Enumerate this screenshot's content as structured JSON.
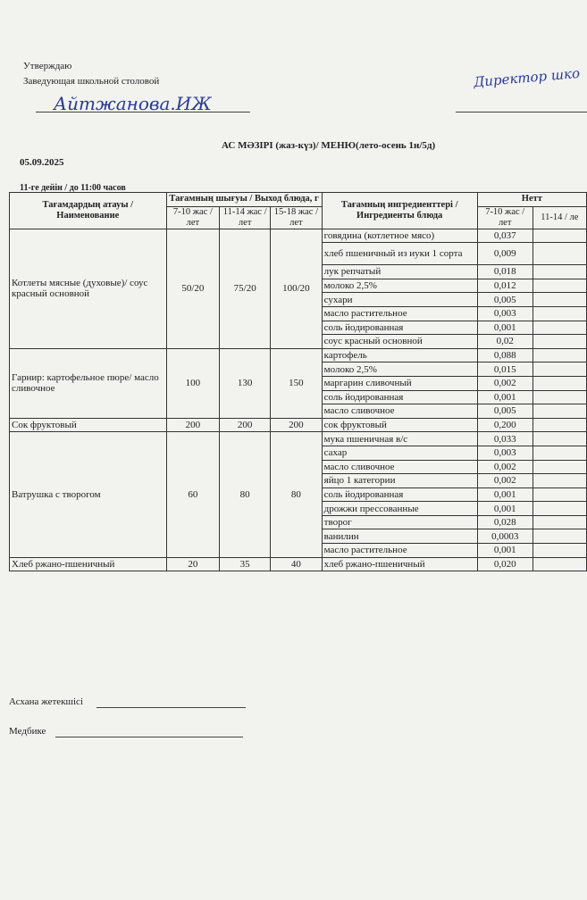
{
  "header": {
    "approve": "Утверждаю",
    "position": "Заведующая школьной столовой",
    "signature": "Айтжанова.ИЖ",
    "right_note": "Директор шко"
  },
  "title": "АС  МӘЗІРІ (жаз-күз)/ МЕНЮ(лето-осень 1н/5д)",
  "date": "05.09.2025",
  "time": "11-ге дейін / до 11:00 часов",
  "table": {
    "headers": {
      "name": "Тағамдардың атауы / Наименование",
      "output": "Тағамның шығуы / Выход блюда, г",
      "ages": [
        "7-10 жас / лет",
        "11-14 жас / лет",
        "15-18 жас / лет"
      ],
      "ingredients": "Тағамның ингредиенттері / Ингредиенты блюда",
      "netto": "Нетт",
      "netto_ages": [
        "7-10 жас / лет",
        "11-14 / ле"
      ]
    },
    "dishes": [
      {
        "name": "Котлеты мясные (духовые)/ соус красный основной",
        "outputs": [
          "50/20",
          "75/20",
          "100/20"
        ],
        "ingredients": [
          [
            "говядина (котлетное мясо)",
            "0,037"
          ],
          [
            "хлеб пшеничный из иуки 1 сорта",
            "0,009"
          ],
          [
            "лук репчатый",
            "0,018"
          ],
          [
            "молоко 2,5%",
            "0,012"
          ],
          [
            "сухари",
            "0,005"
          ],
          [
            "масло растительное",
            "0,003"
          ],
          [
            "соль йодированная",
            "0,001"
          ],
          [
            "соус красный основной",
            "0,02"
          ]
        ]
      },
      {
        "name": "Гарнир:  картофельное пюре/ масло сливочное",
        "outputs": [
          "100",
          "130",
          "150"
        ],
        "ingredients": [
          [
            "картофель",
            "0,088"
          ],
          [
            "молоко 2,5%",
            "0,015"
          ],
          [
            "маргарин сливочный",
            "0,002"
          ],
          [
            "соль йодированная",
            "0,001"
          ],
          [
            "масло сливочное",
            "0,005"
          ]
        ]
      },
      {
        "name": "Сок фруктовый",
        "outputs": [
          "200",
          "200",
          "200"
        ],
        "ingredients": [
          [
            "сок фруктовый",
            "0,200"
          ]
        ]
      },
      {
        "name": "Ватрушка с творогом",
        "outputs": [
          "60",
          "80",
          "80"
        ],
        "ingredients": [
          [
            "мука пшеничная в/с",
            "0,033"
          ],
          [
            "сахар",
            "0,003"
          ],
          [
            "масло сливочное",
            "0,002"
          ],
          [
            "яйцо 1 категории",
            "0,002"
          ],
          [
            "соль йодированная",
            "0,001"
          ],
          [
            "дрожжи прессованные",
            "0,001"
          ],
          [
            "творог",
            "0,028"
          ],
          [
            "ванилин",
            "0,0003"
          ],
          [
            "масло растительное",
            "0,001"
          ]
        ]
      },
      {
        "name": "Хлеб ржано-пшеничный",
        "outputs": [
          "20",
          "35",
          "40"
        ],
        "ingredients": [
          [
            "хлеб ржано-пшеничный",
            "0,020"
          ]
        ]
      }
    ]
  },
  "footer": {
    "cook": "Асхана жетекшісі",
    "nurse": "Медбике"
  }
}
